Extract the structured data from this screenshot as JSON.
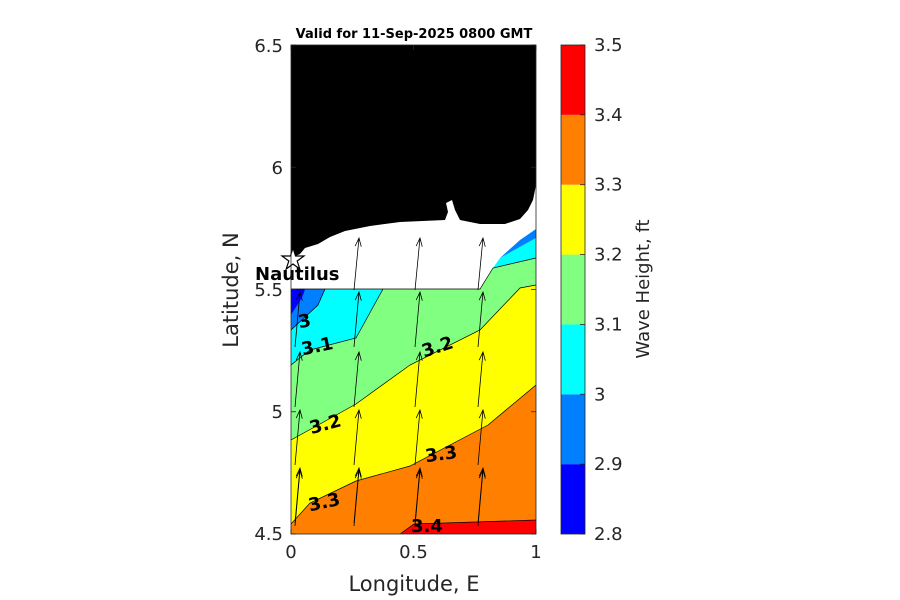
{
  "chart_data": {
    "type": "contour",
    "title": "Valid for 11-Sep-2025 0800 GMT",
    "xlabel": "Longitude, E",
    "ylabel": "Latitude, N",
    "xlim": [
      0,
      1
    ],
    "ylim": [
      4.5,
      6.5
    ],
    "x_ticks": [
      "0",
      "0.5",
      "1"
    ],
    "y_ticks": [
      "4.5",
      "5",
      "5.5",
      "6",
      "6.5"
    ],
    "colorbar": {
      "label": "Wave Height, ft",
      "range": [
        2.8,
        3.5
      ],
      "ticks": [
        "2.8",
        "2.9",
        "3",
        "3.1",
        "3.2",
        "3.3",
        "3.4",
        "3.5"
      ],
      "colors": [
        "#0000ff",
        "#0080ff",
        "#00ffff",
        "#80ff80",
        "#ffff00",
        "#ff8000",
        "#ff0000"
      ]
    },
    "contour_labels": [
      {
        "text": "3",
        "lon": 0.06,
        "lat": 5.37
      },
      {
        "text": "3.1",
        "lon": 0.11,
        "lat": 5.28
      },
      {
        "text": "3.2",
        "lon": 0.6,
        "lat": 5.28
      },
      {
        "text": "3.2",
        "lon": 0.15,
        "lat": 4.96
      },
      {
        "text": "3.3",
        "lon": 0.62,
        "lat": 4.73
      },
      {
        "text": "3.3",
        "lon": 0.15,
        "lat": 4.56
      },
      {
        "text": "3.4",
        "lon": 0.57,
        "lat": 4.52
      }
    ],
    "station": {
      "name": "Nautilus",
      "lon": 0.0,
      "lat": 5.62
    },
    "direction_arrows_note": "arrows point roughly north"
  }
}
